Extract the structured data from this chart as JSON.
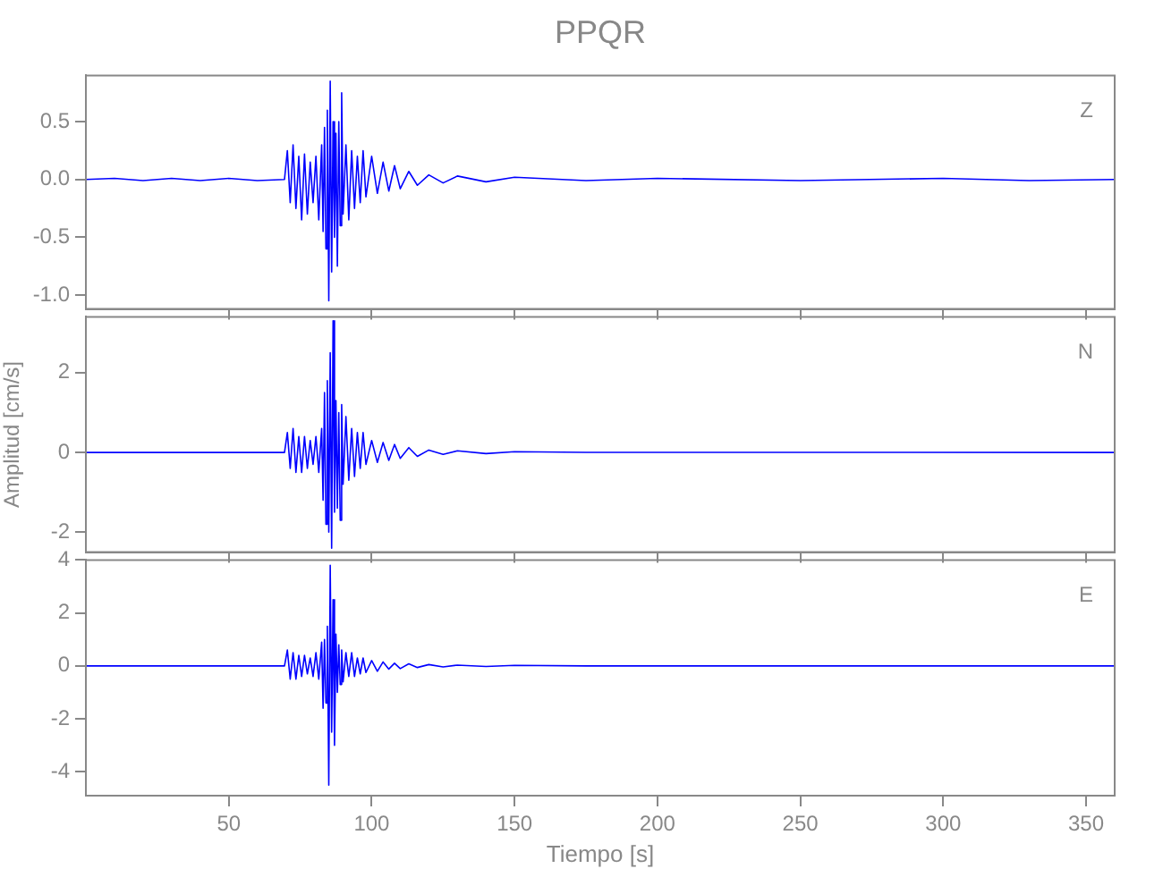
{
  "chart_data": [
    {
      "type": "line",
      "title": "PPQR",
      "annotations": [
        "Z"
      ],
      "x": [
        0,
        10,
        20,
        30,
        40,
        50,
        60,
        69.5,
        70.5,
        71.5,
        72.5,
        73.5,
        74.5,
        75.5,
        76.5,
        77.5,
        78.5,
        79.5,
        80.5,
        81.5,
        82.5,
        83,
        83.5,
        84,
        84.5,
        85,
        85.5,
        86,
        86.5,
        87,
        87.5,
        88,
        88.5,
        89,
        89.5,
        90,
        91,
        92,
        93,
        94,
        95,
        96,
        97,
        98,
        100,
        102,
        104,
        106,
        108,
        110,
        113,
        116,
        120,
        125,
        130,
        140,
        150,
        175,
        200,
        250,
        300,
        330,
        360
      ],
      "series": [
        {
          "color": "#0000ff",
          "values": [
            0,
            0.01,
            -0.01,
            0.01,
            -0.01,
            0.01,
            -0.01,
            0,
            0.25,
            -0.2,
            0.3,
            -0.25,
            0.2,
            -0.35,
            0.22,
            -0.3,
            0.15,
            -0.2,
            0.2,
            -0.35,
            0.3,
            -0.45,
            0.45,
            -0.6,
            0.6,
            -1.05,
            0.85,
            -0.8,
            0.5,
            -0.5,
            0.4,
            -0.75,
            0.5,
            -0.4,
            0.75,
            -0.3,
            0.3,
            -0.35,
            0.25,
            -0.25,
            0.2,
            -0.2,
            0.25,
            -0.15,
            0.2,
            -0.12,
            0.15,
            -0.1,
            0.12,
            -0.08,
            0.07,
            -0.05,
            0.04,
            -0.03,
            0.03,
            -0.02,
            0.02,
            -0.01,
            0.01,
            -0.01,
            0.01,
            -0.01,
            0
          ]
        }
      ],
      "xlim": [
        0,
        360
      ],
      "xticks": [
        50,
        100,
        150,
        200,
        250,
        300,
        350
      ],
      "ylim": [
        -1.12,
        0.9
      ],
      "yticks": [
        {
          "value": -1,
          "label": "-1.0"
        },
        -0.5,
        {
          "value": 0,
          "label": "0.0"
        },
        0.5
      ],
      "grid": false,
      "legend": false,
      "tick_labels": "y"
    },
    {
      "type": "line",
      "ylabel": "Amplitud [cm/s]",
      "annotations": [
        "N"
      ],
      "x": [
        0,
        69.5,
        70.5,
        71.5,
        72.5,
        73.5,
        74.5,
        75.5,
        76.5,
        77.5,
        78.5,
        79.5,
        80.5,
        81.5,
        82.5,
        83,
        83.5,
        84,
        84.5,
        85,
        85.5,
        86,
        86.5,
        87,
        87.5,
        88,
        88.5,
        89,
        89.5,
        90,
        91,
        92,
        93,
        94,
        95,
        96,
        97,
        98,
        100,
        102,
        104,
        106,
        108,
        110,
        113,
        116,
        120,
        125,
        130,
        140,
        150,
        175,
        360
      ],
      "series": [
        {
          "color": "#0000ff",
          "values": [
            0,
            0,
            0.5,
            -0.4,
            0.6,
            -0.5,
            0.4,
            -0.5,
            0.4,
            -0.4,
            0.3,
            -0.3,
            0.4,
            -0.5,
            0.6,
            -1.2,
            1.5,
            -1.8,
            1.8,
            -2,
            2.5,
            -2.4,
            3.3,
            -1.5,
            1.3,
            -1.4,
            1,
            -1.7,
            1.2,
            -0.8,
            0.9,
            -0.7,
            0.6,
            -0.6,
            0.5,
            -0.4,
            0.5,
            -0.3,
            0.3,
            -0.25,
            0.25,
            -0.2,
            0.2,
            -0.15,
            0.12,
            -0.1,
            0.06,
            -0.05,
            0.04,
            -0.03,
            0.02,
            0,
            0
          ]
        }
      ],
      "xlim": [
        0,
        360
      ],
      "xticks": [
        50,
        100,
        150,
        200,
        250,
        300,
        350
      ],
      "ylim": [
        -2.5,
        3.4
      ],
      "yticks": [
        -2,
        0,
        2
      ],
      "grid": false,
      "legend": false,
      "tick_labels": "y"
    },
    {
      "type": "line",
      "xlabel": "Tiempo [s]",
      "annotations": [
        "E"
      ],
      "x": [
        0,
        69.5,
        70.5,
        71.5,
        72.5,
        73.5,
        74.5,
        75.5,
        76.5,
        77.5,
        78.5,
        79.5,
        80.5,
        81.5,
        82.5,
        83,
        83.5,
        84,
        84.5,
        85,
        85.5,
        86,
        86.5,
        87,
        87.5,
        88,
        88.5,
        89,
        89.5,
        90,
        91,
        92,
        93,
        94,
        95,
        96,
        97,
        98,
        100,
        102,
        104,
        106,
        108,
        110,
        113,
        116,
        120,
        125,
        130,
        140,
        150,
        175,
        360
      ],
      "series": [
        {
          "color": "#0000ff",
          "values": [
            0,
            0,
            0.6,
            -0.5,
            0.5,
            -0.5,
            0.4,
            -0.4,
            0.4,
            -0.3,
            0.3,
            -0.4,
            0.5,
            -0.5,
            0.9,
            -1.6,
            1,
            -1.4,
            1.5,
            -4.5,
            3.8,
            -2.5,
            2.5,
            -3,
            1.2,
            -1,
            0.8,
            -0.7,
            0.6,
            -0.6,
            0.5,
            -0.4,
            0.5,
            -0.4,
            0.3,
            -0.3,
            0.3,
            -0.25,
            0.2,
            -0.2,
            0.15,
            -0.12,
            0.1,
            -0.1,
            0.08,
            -0.06,
            0.05,
            -0.04,
            0.03,
            -0.02,
            0.02,
            0,
            0
          ]
        }
      ],
      "xlim": [
        0,
        360
      ],
      "xticks": [
        50,
        100,
        150,
        200,
        250,
        300,
        350
      ],
      "ylim": [
        -4.9,
        4
      ],
      "yticks": [
        -4,
        -2,
        0,
        2,
        4
      ],
      "grid": false,
      "legend": false
    }
  ]
}
